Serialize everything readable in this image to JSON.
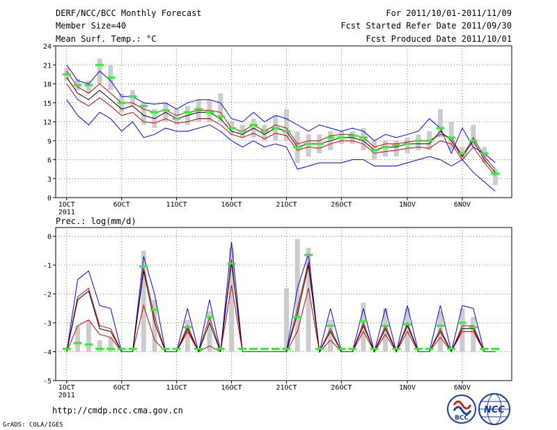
{
  "header": {
    "title": "DERF/NCC/BCC Monthly Forecast",
    "member_size": "Member Size=40",
    "variable": "Mean Surf. Temp.: °C",
    "period": "For 2011/10/01-2011/11/09",
    "refer_date": "Fcst Started Refer Date 2011/09/30",
    "produced_date": "Fcst Produced Date 2011/10/01"
  },
  "footer": {
    "url": "http://cmdp.ncc.cma.gov.cn",
    "grads": "GrADS: COLA/IGES",
    "logo_bcc": "BCC",
    "logo_ncc": "NCC"
  },
  "colors": {
    "envelope": "#0000ff",
    "mean": "#000000",
    "spread": "#cc0000",
    "obs": "#33ee33",
    "box": "#cccccc",
    "grid": "#777777"
  },
  "chart_data": [
    {
      "type": "line",
      "title": "Mean Surf. Temp.: °C",
      "x_days": [
        1,
        2,
        3,
        4,
        5,
        6,
        7,
        8,
        9,
        10,
        11,
        12,
        13,
        14,
        15,
        16,
        17,
        18,
        19,
        20,
        21,
        22,
        23,
        24,
        25,
        26,
        27,
        28,
        29,
        30,
        31,
        32,
        33,
        34,
        35,
        36,
        37,
        38,
        39,
        40
      ],
      "x_ticks": [
        {
          "day": 1,
          "label": "1OCT"
        },
        {
          "day": 6,
          "label": "6OCT"
        },
        {
          "day": 11,
          "label": "11OCT"
        },
        {
          "day": 16,
          "label": "16OCT"
        },
        {
          "day": 21,
          "label": "21OCT"
        },
        {
          "day": 26,
          "label": "26OCT"
        },
        {
          "day": 32,
          "label": "1NOV"
        },
        {
          "day": 37,
          "label": "6NOV"
        }
      ],
      "x_year": "2011",
      "ylim": [
        0,
        24
      ],
      "y_ticks": [
        0,
        3,
        6,
        9,
        12,
        15,
        18,
        21,
        24
      ],
      "series": [
        {
          "name": "ensemble max",
          "values": [
            21,
            18.5,
            18,
            20,
            18.5,
            16,
            16,
            15,
            14.8,
            15,
            14,
            15,
            15.5,
            15.5,
            15,
            12.5,
            12,
            13.5,
            12,
            13,
            12.5,
            11.5,
            10.5,
            11.5,
            11,
            10.5,
            11,
            10.5,
            9,
            10,
            9.5,
            10,
            10.5,
            12.5,
            11,
            7,
            11,
            8,
            7,
            5.5
          ]
        },
        {
          "name": "ensemble min",
          "values": [
            15.5,
            13,
            11.5,
            13.5,
            12.5,
            10.5,
            12,
            9.5,
            10,
            11,
            10.5,
            10.5,
            11,
            11.5,
            10.5,
            9,
            8,
            9,
            8,
            8.5,
            8,
            4.5,
            5,
            5.5,
            5.5,
            5.5,
            6,
            6,
            5,
            5,
            5,
            5.5,
            6,
            6.5,
            6,
            5,
            6,
            4,
            2.5,
            1
          ]
        },
        {
          "name": "upper spread",
          "values": [
            20,
            17.5,
            16.5,
            18,
            16.5,
            15,
            15,
            14,
            13.5,
            13.8,
            13,
            13.5,
            13.8,
            13.8,
            13.5,
            11,
            10.5,
            11.5,
            10.5,
            11.5,
            11,
            8.5,
            9,
            9,
            9.8,
            10,
            10,
            9.5,
            8,
            8.5,
            8.5,
            8.8,
            9,
            9,
            10,
            9.5,
            6.5,
            9.5,
            6.5,
            4.5
          ]
        },
        {
          "name": "ensemble mean",
          "values": [
            19,
            16.5,
            15.5,
            17,
            15.5,
            14,
            14.5,
            13,
            12.5,
            13.5,
            12.5,
            13,
            13.5,
            13.5,
            12.5,
            10.5,
            10,
            11,
            10,
            11,
            10.5,
            8,
            8.5,
            8.5,
            9,
            9.5,
            9.5,
            9,
            7.5,
            8,
            8,
            8.5,
            8.5,
            8.5,
            10.5,
            9,
            6.5,
            9,
            6,
            4
          ]
        },
        {
          "name": "lower spread",
          "values": [
            18,
            15.5,
            14.5,
            15.8,
            14.5,
            13,
            13.5,
            12,
            11.8,
            12.5,
            11.8,
            12,
            12.5,
            12.5,
            11.5,
            10,
            9.5,
            10.2,
            9.3,
            10.2,
            9.8,
            7.5,
            8,
            7.8,
            8.5,
            9,
            9,
            8.5,
            7,
            7.3,
            7.5,
            7.8,
            8,
            7.8,
            9,
            8.5,
            6,
            8,
            5.5,
            3.5
          ]
        },
        {
          "name": "observed",
          "values": [
            19.5,
            17.8,
            17.8,
            21,
            19,
            15,
            16,
            14.5,
            13.5,
            13.8,
            12.5,
            13.5,
            14,
            13.5,
            12.8,
            11,
            10.5,
            11.5,
            10.5,
            11,
            10.5,
            8,
            8.5,
            8.5,
            9.5,
            9.5,
            9.8,
            9.5,
            7.5,
            8,
            8.3,
            8.5,
            9,
            9,
            11,
            9.5,
            7,
            9,
            7,
            3.8
          ]
        }
      ],
      "box_ranges": [
        [
          18.5,
          20.5
        ],
        [
          17,
          18.8
        ],
        [
          16.5,
          18.5
        ],
        [
          18,
          22
        ],
        [
          17,
          21
        ],
        [
          13.5,
          16.5
        ],
        [
          14.5,
          17
        ],
        [
          11.5,
          15
        ],
        [
          11,
          14
        ],
        [
          12,
          15
        ],
        [
          11.5,
          14
        ],
        [
          11.5,
          14.5
        ],
        [
          12,
          15.5
        ],
        [
          12,
          15.5
        ],
        [
          12,
          16.5
        ],
        [
          10,
          12
        ],
        [
          9.5,
          11.5
        ],
        [
          9.5,
          12.5
        ],
        [
          9,
          11.5
        ],
        [
          9,
          13
        ],
        [
          9,
          14
        ],
        [
          5.5,
          10.5
        ],
        [
          6.5,
          10
        ],
        [
          7,
          10
        ],
        [
          7.5,
          10.5
        ],
        [
          8.5,
          10.5
        ],
        [
          8.5,
          10.5
        ],
        [
          7.5,
          11
        ],
        [
          6,
          9
        ],
        [
          6.5,
          9
        ],
        [
          6.5,
          9
        ],
        [
          7,
          9.5
        ],
        [
          7.5,
          10
        ],
        [
          7.5,
          10.5
        ],
        [
          9.5,
          14
        ],
        [
          7.5,
          12
        ],
        [
          6,
          8
        ],
        [
          8,
          11.5
        ],
        [
          5.5,
          8
        ],
        [
          2,
          4.5
        ]
      ]
    },
    {
      "type": "line",
      "title": "Prec.: log(mm/d)",
      "x_days": [
        1,
        2,
        3,
        4,
        5,
        6,
        7,
        8,
        9,
        10,
        11,
        12,
        13,
        14,
        15,
        16,
        17,
        18,
        19,
        20,
        21,
        22,
        23,
        24,
        25,
        26,
        27,
        28,
        29,
        30,
        31,
        32,
        33,
        34,
        35,
        36,
        37,
        38,
        39,
        40
      ],
      "x_ticks": [
        {
          "day": 1,
          "label": "1OCT"
        },
        {
          "day": 6,
          "label": "6OCT"
        },
        {
          "day": 11,
          "label": "11OCT"
        },
        {
          "day": 16,
          "label": "16OCT"
        },
        {
          "day": 21,
          "label": "21OCT"
        },
        {
          "day": 26,
          "label": "26OCT"
        },
        {
          "day": 32,
          "label": "1NOV"
        },
        {
          "day": 37,
          "label": "6NOV"
        }
      ],
      "x_year": "2011",
      "ylim": [
        -5,
        0.3
      ],
      "y_ticks": [
        -5,
        -4,
        -3,
        -2,
        -1,
        0
      ],
      "series": [
        {
          "name": "ensemble max",
          "values": [
            -4,
            -1.5,
            -1.2,
            -2.4,
            -2.5,
            -4,
            -4,
            -0.7,
            -2,
            -4,
            -4,
            -2.5,
            -4,
            -2.2,
            -4,
            -0.2,
            -4,
            -4,
            -4,
            -4,
            -4,
            -1.8,
            -0.6,
            -4,
            -2.5,
            -4,
            -4,
            -2.5,
            -4,
            -2.5,
            -4,
            -2.4,
            -4,
            -4,
            -2.4,
            -4,
            -2.4,
            -2.5,
            -4,
            -4
          ]
        },
        {
          "name": "upper spread",
          "values": [
            -4,
            -2.1,
            -1.8,
            -3.1,
            -3.2,
            -4,
            -4,
            -1.1,
            -2.8,
            -4,
            -4,
            -3.1,
            -4,
            -2.8,
            -4,
            -0.8,
            -4,
            -4,
            -4,
            -4,
            -4,
            -2.5,
            -0.9,
            -4,
            -3.2,
            -4,
            -4,
            -3,
            -4,
            -3.1,
            -4,
            -3,
            -4,
            -4,
            -3.2,
            -4,
            -3.1,
            -3.1,
            -4,
            -4
          ]
        },
        {
          "name": "ensemble mean",
          "values": [
            -4,
            -2.2,
            -1.9,
            -3.2,
            -3.3,
            -4,
            -4,
            -1.2,
            -3,
            -4,
            -4,
            -3.2,
            -4,
            -3,
            -4,
            -0.9,
            -4,
            -4,
            -4,
            -4,
            -4,
            -2.7,
            -1,
            -4,
            -3.3,
            -4,
            -4,
            -3.1,
            -4,
            -3.2,
            -4,
            -3.1,
            -4,
            -4,
            -3.3,
            -4,
            -3.2,
            -3.2,
            -4,
            -4
          ]
        },
        {
          "name": "lower spread",
          "values": [
            -4,
            -3.1,
            -2.9,
            -3.4,
            -3.5,
            -4,
            -4,
            -2.4,
            -3.6,
            -4,
            -4,
            -3.3,
            -4,
            -3.8,
            -4,
            -1.7,
            -4,
            -4,
            -4,
            -4,
            -4,
            -3.3,
            -1.8,
            -4,
            -3.6,
            -4,
            -4,
            -3.3,
            -4,
            -3.4,
            -4,
            -3.3,
            -4,
            -4,
            -3.5,
            -4,
            -3.3,
            -3.3,
            -4,
            -4
          ]
        },
        {
          "name": "observed",
          "values": [
            -3.9,
            -3.7,
            -3.75,
            -3.9,
            -3.9,
            -3.9,
            -3.9,
            -1.05,
            -2.55,
            -3.9,
            -3.9,
            -3.15,
            -3.9,
            -2.8,
            -3.9,
            -0.95,
            -3.9,
            -3.9,
            -3.9,
            -3.9,
            -3.9,
            -2.8,
            -0.65,
            -3.9,
            -3.1,
            -3.9,
            -3.9,
            -2.95,
            -3.9,
            -3.1,
            -3.9,
            -3.05,
            -3.9,
            -3.9,
            -3.1,
            -3.9,
            -3,
            -3.15,
            -3.9,
            -3.9
          ]
        }
      ],
      "box_ranges": [
        [
          -4,
          -4
        ],
        [
          -4,
          -3.1
        ],
        [
          -4,
          -2.9
        ],
        [
          -4,
          -3.6
        ],
        [
          -4,
          -3.5
        ],
        [
          -4,
          -4
        ],
        [
          -4,
          -4
        ],
        [
          -4,
          -0.5
        ],
        [
          -4,
          -2.2
        ],
        [
          -4,
          -4
        ],
        [
          -4,
          -4
        ],
        [
          -4,
          -2.9
        ],
        [
          -4,
          -4
        ],
        [
          -4,
          -2.6
        ],
        [
          -4,
          -4
        ],
        [
          -4,
          -0.4
        ],
        [
          -4,
          -4
        ],
        [
          -4,
          -4
        ],
        [
          -4,
          -4
        ],
        [
          -4,
          -4
        ],
        [
          -4,
          -1.8
        ],
        [
          -4,
          -0.1
        ],
        [
          -4,
          -0.4
        ],
        [
          -4,
          -4
        ],
        [
          -4,
          -2.9
        ],
        [
          -4,
          -4
        ],
        [
          -4,
          -4
        ],
        [
          -4,
          -2.3
        ],
        [
          -4,
          -4
        ],
        [
          -4,
          -2.5
        ],
        [
          -4,
          -4
        ],
        [
          -4,
          -2.5
        ],
        [
          -4,
          -4
        ],
        [
          -4,
          -4
        ],
        [
          -4,
          -2.6
        ],
        [
          -4,
          -4
        ],
        [
          -4,
          -2.5
        ],
        [
          -4,
          -2.8
        ],
        [
          -4,
          -4
        ],
        [
          -4,
          -4
        ]
      ]
    }
  ]
}
